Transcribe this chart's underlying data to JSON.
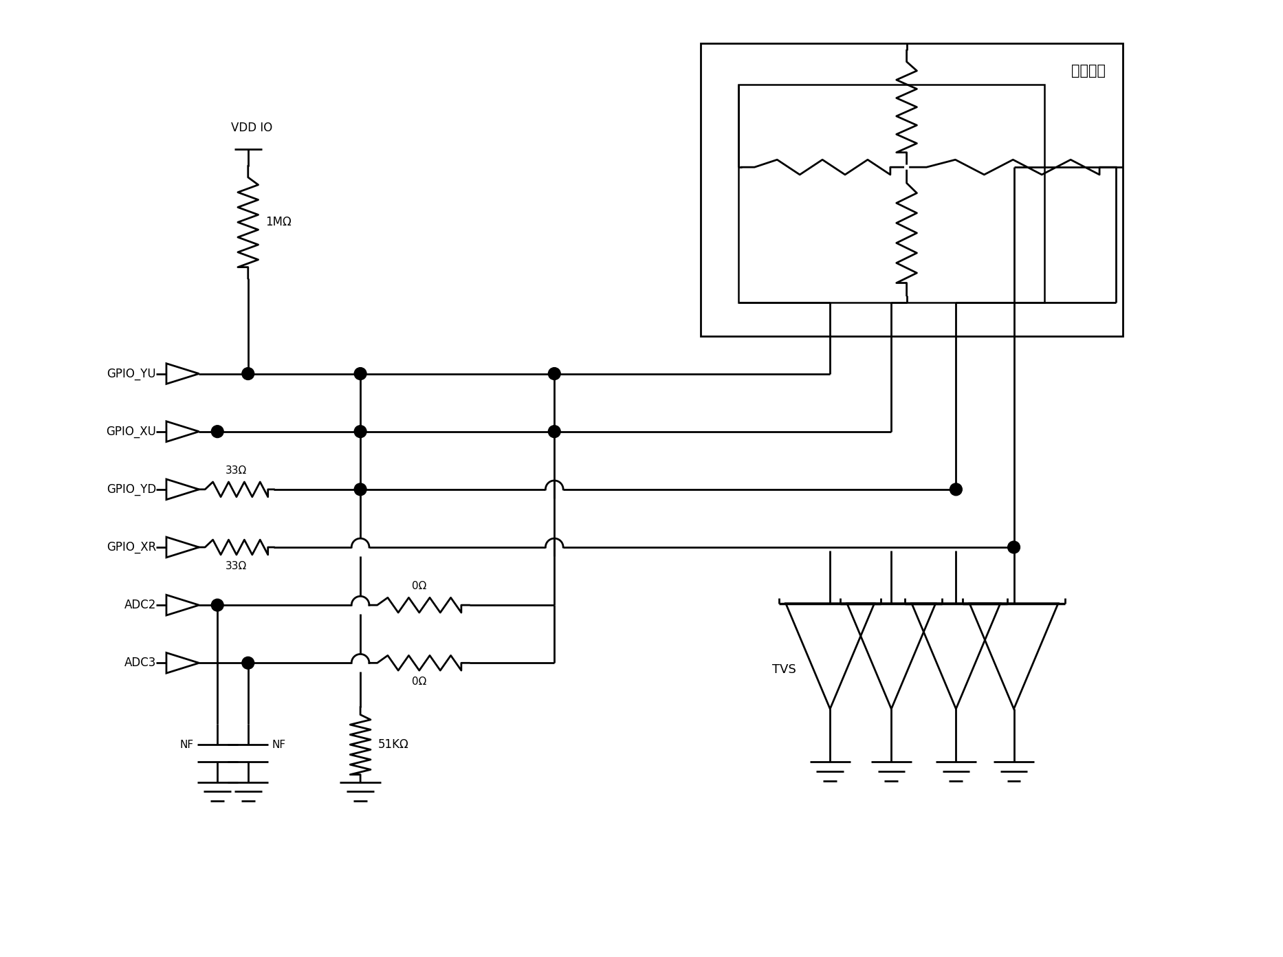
{
  "bg_color": "#ffffff",
  "lc": "#000000",
  "lw": 2.0,
  "figsize": [
    18.66,
    13.92
  ],
  "dpi": 100,
  "gpio_labels": [
    "GPIO_YU",
    "GPIO_XU",
    "GPIO_YD",
    "GPIO_XR",
    "ADC2",
    "ADC3"
  ],
  "vdd_label": "VDD IO",
  "res_1M": "1MΩ",
  "res_33a": "33Ω",
  "res_33b": "33Ω",
  "res_0a": "0Ω",
  "res_0b": "0Ω",
  "res_51k": "51KΩ",
  "cap_label": "NF",
  "tvs_label": "TVS",
  "touch_label": "触摸面板"
}
